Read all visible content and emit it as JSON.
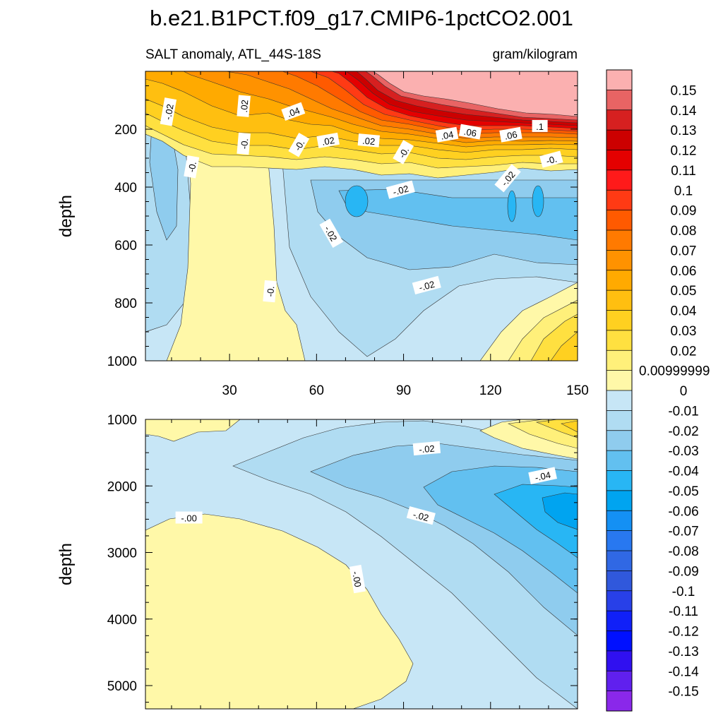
{
  "chart_data": {
    "type": "heatmap",
    "title": "b.e21.B1PCT.f09_g17.CMIP6-1pctCO2.001",
    "subtitle_left": "SALT anomaly, ATL_44S-18S",
    "subtitle_right": "gram/kilogram",
    "xlim": [
      1,
      150
    ],
    "x_ticks": [
      "30",
      "60",
      "90",
      "120",
      "150"
    ],
    "panels": [
      {
        "id": "upper",
        "ylabel": "depth",
        "ylim": [
          0,
          1000
        ],
        "y_reversed": true,
        "y_ticks": [
          "200",
          "400",
          "600",
          "800",
          "1000"
        ],
        "contour_labels": [
          {
            "text": "-.02",
            "x": 9,
            "depth": 140,
            "angle": -80
          },
          {
            "text": ".02",
            "x": 35,
            "depth": 120,
            "angle": -85
          },
          {
            "text": "-0.",
            "x": 35,
            "depth": 250,
            "angle": -85
          },
          {
            "text": "-0.",
            "x": 17,
            "depth": 330,
            "angle": -80
          },
          {
            "text": ".04",
            "x": 52,
            "depth": 140,
            "angle": -20
          },
          {
            "text": "-0.",
            "x": 54,
            "depth": 255,
            "angle": -60
          },
          {
            "text": ".02",
            "x": 64,
            "depth": 240,
            "angle": -10
          },
          {
            "text": ".02",
            "x": 78,
            "depth": 240,
            "angle": 5
          },
          {
            "text": "-0.",
            "x": 90,
            "depth": 280,
            "angle": -60
          },
          {
            "text": ".04",
            "x": 105,
            "depth": 220,
            "angle": -10
          },
          {
            "text": ".06",
            "x": 113,
            "depth": 210,
            "angle": 10
          },
          {
            "text": ".06",
            "x": 127,
            "depth": 220,
            "angle": -10
          },
          {
            "text": ".1",
            "x": 137,
            "depth": 190,
            "angle": 0
          },
          {
            "text": "-0.",
            "x": 141,
            "depth": 305,
            "angle": -15
          },
          {
            "text": "-.02",
            "x": 126,
            "depth": 370,
            "angle": -50
          },
          {
            "text": "-.02",
            "x": 89,
            "depth": 410,
            "angle": -15
          },
          {
            "text": "-.02",
            "x": 65,
            "depth": 560,
            "angle": 60
          },
          {
            "text": "-.02",
            "x": 98,
            "depth": 740,
            "angle": -15
          },
          {
            "text": "-0.",
            "x": 44,
            "depth": 760,
            "angle": -85
          }
        ]
      },
      {
        "id": "lower",
        "ylabel": "depth",
        "ylim": [
          1000,
          5350
        ],
        "y_reversed": true,
        "y_ticks": [
          "1000",
          "2000",
          "3000",
          "4000",
          "5000"
        ],
        "contour_labels": [
          {
            "text": "-.02",
            "x": 98,
            "depth": 1440,
            "angle": -5
          },
          {
            "text": "-.04",
            "x": 138,
            "depth": 1850,
            "angle": -12
          },
          {
            "text": "-.02",
            "x": 96,
            "depth": 2450,
            "angle": 15
          },
          {
            "text": "-.00",
            "x": 16,
            "depth": 2480,
            "angle": 0
          },
          {
            "text": "-.00",
            "x": 74,
            "depth": 3400,
            "angle": 80
          }
        ]
      }
    ],
    "colorbar": {
      "labels": [
        "0.15",
        "0.14",
        "0.13",
        "0.12",
        "0.11",
        "0.1",
        "0.09",
        "0.08",
        "0.07",
        "0.06",
        "0.05",
        "0.04",
        "0.03",
        "0.02",
        "0.00999999",
        "0",
        "-0.01",
        "-0.02",
        "-0.03",
        "-0.04",
        "-0.05",
        "-0.06",
        "-0.07",
        "-0.08",
        "-0.09",
        "-0.1",
        "-0.11",
        "-0.12",
        "-0.13",
        "-0.14",
        "-0.15"
      ],
      "colors": [
        "#fbb0b0",
        "#e86464",
        "#d62020",
        "#cc0000",
        "#e40000",
        "#ff1a1a",
        "#ff3a14",
        "#ff5a00",
        "#ff7a00",
        "#ff9200",
        "#ffaa00",
        "#ffbf10",
        "#ffd020",
        "#ffe040",
        "#fff07a",
        "#fff8a8",
        "#c7e6f6",
        "#b0dcf2",
        "#8fccee",
        "#62c0f0",
        "#28b6f4",
        "#00a4f0",
        "#1490f4",
        "#2878f0",
        "#3068e4",
        "#3058dc",
        "#2840e8",
        "#1020f8",
        "#0010ff",
        "#3010f0",
        "#6020ee",
        "#8a28ea"
      ]
    }
  }
}
